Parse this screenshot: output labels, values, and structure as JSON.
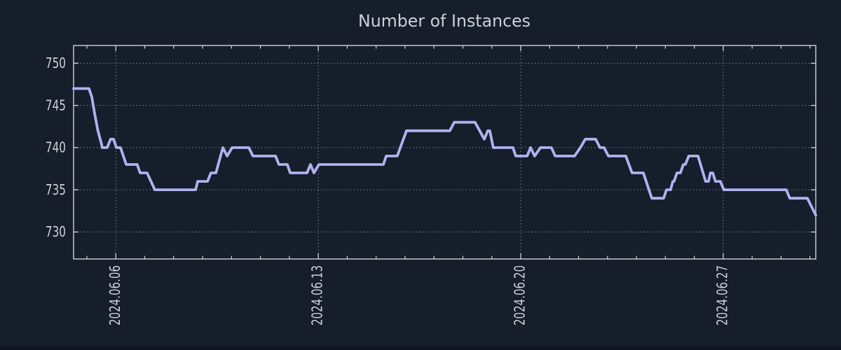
{
  "chart_data": {
    "type": "line",
    "title": "Number of Instances",
    "xlabel": "",
    "ylabel": "",
    "legend": "none",
    "grid": "dotted",
    "x_axis": {
      "kind": "time",
      "range_days": [
        -1.46,
        24.2
      ],
      "major_tick_days": [
        0,
        7,
        14,
        21
      ],
      "tick_labels": [
        "2024.06.06",
        "2024.06.13",
        "2024.06.20",
        "2024.06.27"
      ],
      "minor_tick_interval_days": 1,
      "label_rotation_deg": -90
    },
    "y_axis": {
      "range": [
        726.8,
        752.1
      ],
      "ticks": [
        730,
        735,
        740,
        745,
        750
      ]
    },
    "series": [
      {
        "name": "instances",
        "color": "#aeb3ee",
        "points": [
          [
            -1.46,
            747
          ],
          [
            -0.93,
            747
          ],
          [
            -0.83,
            746
          ],
          [
            -0.73,
            744
          ],
          [
            -0.62,
            742
          ],
          [
            -0.5,
            740.5
          ],
          [
            -0.47,
            740
          ],
          [
            -0.3,
            740
          ],
          [
            -0.18,
            741
          ],
          [
            -0.08,
            741
          ],
          [
            0.02,
            740
          ],
          [
            0.16,
            740
          ],
          [
            0.36,
            738
          ],
          [
            0.74,
            738
          ],
          [
            0.84,
            737
          ],
          [
            1.08,
            737
          ],
          [
            1.35,
            735
          ],
          [
            2.76,
            735
          ],
          [
            2.83,
            736
          ],
          [
            3.17,
            736
          ],
          [
            3.29,
            737
          ],
          [
            3.46,
            737
          ],
          [
            3.7,
            740
          ],
          [
            3.85,
            739
          ],
          [
            4.02,
            740
          ],
          [
            4.6,
            740
          ],
          [
            4.74,
            739
          ],
          [
            5.52,
            739
          ],
          [
            5.64,
            738
          ],
          [
            5.93,
            738
          ],
          [
            6.03,
            737
          ],
          [
            6.61,
            737
          ],
          [
            6.73,
            738
          ],
          [
            6.85,
            737
          ],
          [
            7.02,
            738
          ],
          [
            9.25,
            738
          ],
          [
            9.35,
            739
          ],
          [
            9.73,
            739
          ],
          [
            10.05,
            742
          ],
          [
            11.55,
            742
          ],
          [
            11.7,
            743
          ],
          [
            12.42,
            743
          ],
          [
            12.74,
            741
          ],
          [
            12.86,
            742
          ],
          [
            12.93,
            742
          ],
          [
            13.05,
            740
          ],
          [
            13.73,
            740
          ],
          [
            13.83,
            739
          ],
          [
            14.22,
            739
          ],
          [
            14.34,
            740
          ],
          [
            14.48,
            739
          ],
          [
            14.68,
            740
          ],
          [
            15.06,
            740
          ],
          [
            15.19,
            739
          ],
          [
            15.86,
            739
          ],
          [
            16.06,
            740
          ],
          [
            16.23,
            741
          ],
          [
            16.59,
            741
          ],
          [
            16.74,
            740
          ],
          [
            16.88,
            740
          ],
          [
            17.03,
            739
          ],
          [
            17.63,
            739
          ],
          [
            17.85,
            737
          ],
          [
            18.24,
            737
          ],
          [
            18.53,
            734
          ],
          [
            18.94,
            734
          ],
          [
            19.04,
            735
          ],
          [
            19.18,
            735
          ],
          [
            19.26,
            736
          ],
          [
            19.3,
            736
          ],
          [
            19.4,
            737
          ],
          [
            19.52,
            737
          ],
          [
            19.62,
            738
          ],
          [
            19.69,
            738
          ],
          [
            19.81,
            739
          ],
          [
            20.13,
            739
          ],
          [
            20.39,
            736
          ],
          [
            20.49,
            736
          ],
          [
            20.56,
            737
          ],
          [
            20.64,
            737
          ],
          [
            20.73,
            736
          ],
          [
            20.9,
            736
          ],
          [
            21.02,
            735
          ],
          [
            23.18,
            735
          ],
          [
            23.3,
            734
          ],
          [
            23.91,
            734
          ],
          [
            24.2,
            732
          ]
        ]
      }
    ]
  },
  "colors": {
    "background": "#161d2b",
    "plot_border": "#d1d4d9",
    "grid": "#9097a1",
    "text": "#ccd0d6",
    "line": "#aeb3ee",
    "bottom_strip": "#10151f"
  }
}
